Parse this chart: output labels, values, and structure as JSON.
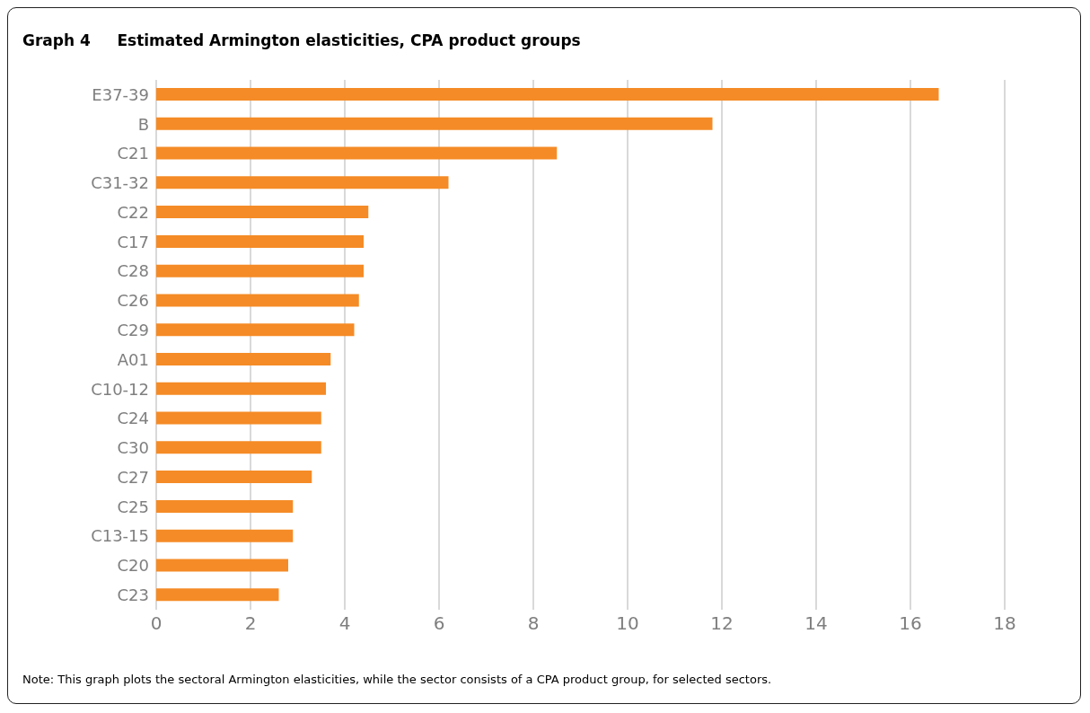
{
  "chart_data": {
    "type": "bar",
    "orientation": "horizontal",
    "title": "Graph 4     Estimated Armington elasticities, CPA product groups",
    "categories": [
      "E37-39",
      "B",
      "C21",
      "C31-32",
      "C22",
      "C17",
      "C28",
      "C26",
      "C29",
      "A01",
      "C10-12",
      "C24",
      "C30",
      "C27",
      "C25",
      "C13-15",
      "C20",
      "C23"
    ],
    "values": [
      16.6,
      11.8,
      8.5,
      6.2,
      4.5,
      4.4,
      4.4,
      4.3,
      4.2,
      3.7,
      3.6,
      3.5,
      3.5,
      3.3,
      2.9,
      2.9,
      2.8,
      2.6
    ],
    "color": "#f58b26",
    "xlim": [
      0,
      18
    ],
    "xticks": [
      0,
      2,
      4,
      6,
      8,
      10,
      12,
      14,
      16,
      18
    ],
    "grid": "x",
    "annotations": [
      "Note: This graph plots the sectoral Armington elasticities, while the sector consists of a CPA product group, for selected sectors."
    ]
  }
}
